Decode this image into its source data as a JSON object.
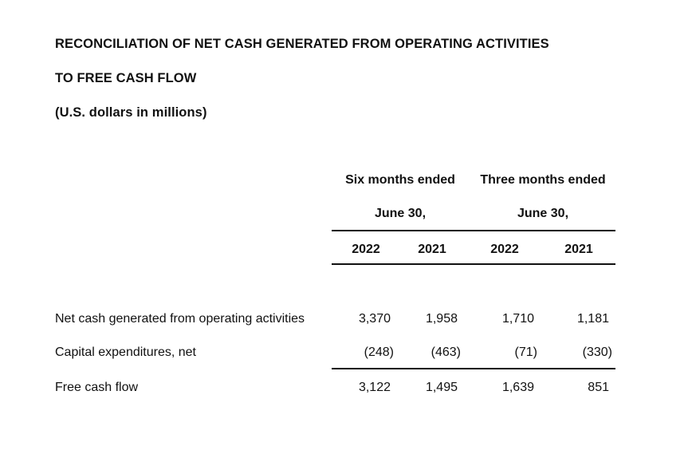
{
  "document": {
    "title_line1": "RECONCILIATION OF NET CASH GENERATED FROM OPERATING ACTIVITIES",
    "title_line2": "TO FREE CASH FLOW",
    "units": "(U.S. dollars in millions)"
  },
  "table": {
    "group_headers": [
      {
        "label": "Six months ended",
        "sublabel": "June 30,"
      },
      {
        "label": "Three months ended",
        "sublabel": "June 30,"
      }
    ],
    "years": [
      "2022",
      "2021",
      "2022",
      "2021"
    ],
    "rows": [
      {
        "label": "Net cash generated from operating activities",
        "values": [
          "3,370",
          "1,958",
          "1,710",
          "1,181"
        ]
      },
      {
        "label": "Capital expenditures, net",
        "values": [
          "(248)",
          "(463)",
          "(71)",
          "(330)"
        ]
      },
      {
        "label": "Free cash flow",
        "values": [
          "3,122",
          "1,495",
          "1,639",
          "851"
        ]
      }
    ]
  }
}
